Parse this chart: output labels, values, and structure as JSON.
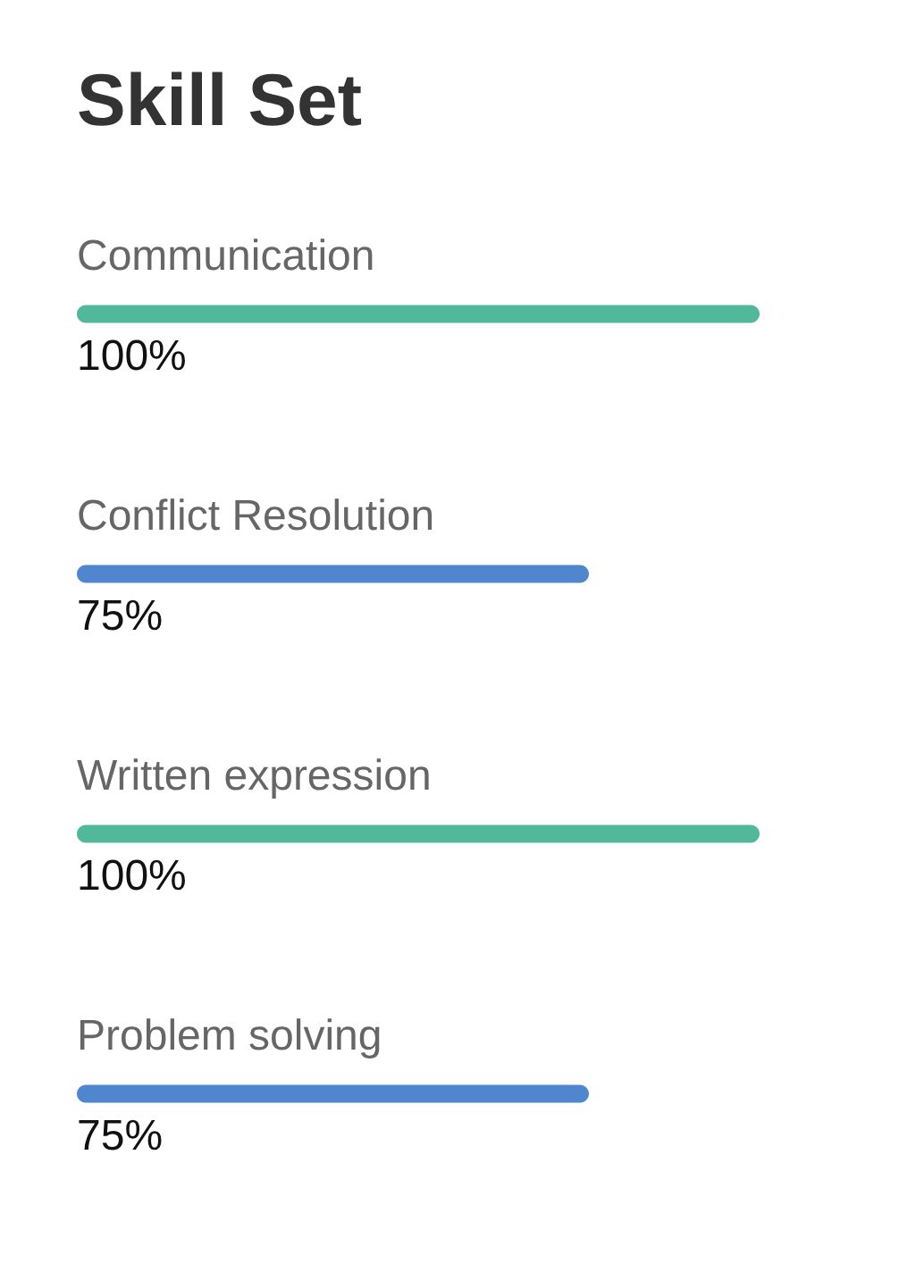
{
  "chart_data": {
    "type": "bar",
    "orientation": "horizontal",
    "title": "Skill Set",
    "categories": [
      "Communication",
      "Conflict Resolution",
      "Written expression",
      "Problem solving"
    ],
    "series": [
      {
        "colors": [
          "#52b89a",
          "#4f86cd",
          "#52b89a",
          "#4f86cd"
        ],
        "values": [
          100,
          75,
          100,
          75
        ],
        "value_labels": [
          "100%",
          "75%",
          "100%",
          "75%"
        ]
      }
    ],
    "tick_labels": "y"
  }
}
